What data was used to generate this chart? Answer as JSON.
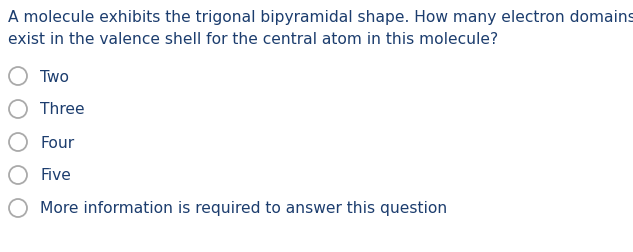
{
  "background_color": "#ffffff",
  "question_line1": "A molecule exhibits the trigonal bipyramidal shape. How many electron domains",
  "question_line2": "exist in the valence shell for the central atom in this molecule?",
  "question_color": "#1c3d6e",
  "options": [
    "Two",
    "Three",
    "Four",
    "Five",
    "More information is required to answer this question"
  ],
  "option_color": "#1c3d6e",
  "circle_edge_color": "#aaaaaa",
  "figsize": [
    6.33,
    2.53
  ],
  "dpi": 100
}
